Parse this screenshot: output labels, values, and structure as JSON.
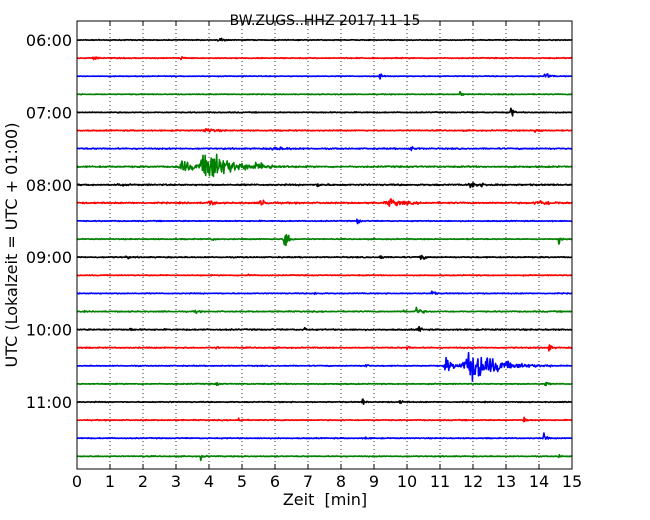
{
  "chart_data": {
    "type": "line",
    "title": "BW.ZUGS..HHZ 2017-11-15",
    "xlabel": "Zeit  [min]",
    "ylabel": "UTC (Lokalzeit = UTC + 01:00)",
    "xlim": [
      0,
      15
    ],
    "x_ticks": [
      "0",
      "1",
      "2",
      "3",
      "4",
      "5",
      "6",
      "7",
      "8",
      "9",
      "10",
      "11",
      "12",
      "13",
      "14",
      "15"
    ],
    "y_ticks": [
      "06:00",
      "07:00",
      "08:00",
      "09:00",
      "10:00",
      "11:00"
    ],
    "y_tick_trace_index": [
      0,
      4,
      8,
      12,
      16,
      20
    ],
    "trace_interval_min": 15,
    "grid": "vertical dotted",
    "color_cycle": [
      "#000000",
      "#ff0000",
      "#0000ff",
      "#008000"
    ],
    "traces": [
      {
        "start": "06:00",
        "color": "#000000",
        "noise": 0.25,
        "events": [
          [
            4.3,
            1.5,
            0.1
          ]
        ]
      },
      {
        "start": "06:15",
        "color": "#ff0000",
        "noise": 0.3,
        "events": [
          [
            0.5,
            1.2,
            0.1
          ],
          [
            3.15,
            2.0,
            0.05
          ]
        ]
      },
      {
        "start": "06:30",
        "color": "#0000ff",
        "noise": 0.25,
        "events": [
          [
            9.15,
            3.0,
            0.05
          ],
          [
            14.2,
            3.5,
            0.08
          ]
        ]
      },
      {
        "start": "06:45",
        "color": "#008000",
        "noise": 0.25,
        "events": [
          [
            11.6,
            2.5,
            0.05
          ]
        ]
      },
      {
        "start": "07:00",
        "color": "#000000",
        "noise": 0.3,
        "events": [
          [
            13.15,
            5.0,
            0.05
          ]
        ]
      },
      {
        "start": "07:15",
        "color": "#ff0000",
        "noise": 0.35,
        "events": [
          [
            3.9,
            1.5,
            0.2
          ],
          [
            13.9,
            1.5,
            0.1
          ]
        ]
      },
      {
        "start": "07:30",
        "color": "#0000ff",
        "noise": 0.4,
        "events": [
          [
            10.1,
            1.5,
            0.1
          ],
          [
            6.0,
            0.8,
            0.4
          ]
        ]
      },
      {
        "start": "07:45",
        "color": "#008000",
        "noise": 0.45,
        "events": [
          [
            4.0,
            12.0,
            0.5
          ],
          [
            3.2,
            4.0,
            0.3
          ],
          [
            5.5,
            1.5,
            0.4
          ]
        ]
      },
      {
        "start": "08:00",
        "color": "#000000",
        "noise": 0.45,
        "events": [
          [
            1.25,
            2.0,
            0.05
          ],
          [
            12.0,
            1.5,
            0.3
          ],
          [
            7.3,
            1.2,
            0.1
          ]
        ]
      },
      {
        "start": "08:15",
        "color": "#ff0000",
        "noise": 0.45,
        "events": [
          [
            9.5,
            2.5,
            0.3
          ],
          [
            4.0,
            2.0,
            0.1
          ],
          [
            5.6,
            1.8,
            0.15
          ],
          [
            14.0,
            1.6,
            0.3
          ]
        ]
      },
      {
        "start": "08:30",
        "color": "#0000ff",
        "noise": 0.3,
        "events": [
          [
            8.5,
            3.0,
            0.05
          ]
        ]
      },
      {
        "start": "08:45",
        "color": "#008000",
        "noise": 0.3,
        "events": [
          [
            6.3,
            9.0,
            0.08
          ],
          [
            4.1,
            1.5,
            0.05
          ],
          [
            14.6,
            3.0,
            0.05
          ]
        ]
      },
      {
        "start": "09:00",
        "color": "#000000",
        "noise": 0.35,
        "events": [
          [
            9.2,
            2.0,
            0.05
          ],
          [
            10.4,
            2.0,
            0.1
          ],
          [
            1.5,
            1.2,
            0.05
          ]
        ]
      },
      {
        "start": "09:15",
        "color": "#ff0000",
        "noise": 0.3,
        "events": [
          [
            5.2,
            2.5,
            0.05
          ]
        ]
      },
      {
        "start": "09:30",
        "color": "#0000ff",
        "noise": 0.3,
        "events": [
          [
            10.75,
            3.0,
            0.05
          ],
          [
            7.2,
            1.2,
            0.05
          ]
        ]
      },
      {
        "start": "09:45",
        "color": "#008000",
        "noise": 0.35,
        "events": [
          [
            10.3,
            3.0,
            0.1
          ],
          [
            3.6,
            1.5,
            0.05
          ],
          [
            9.9,
            1.2,
            0.05
          ]
        ]
      },
      {
        "start": "10:00",
        "color": "#000000",
        "noise": 0.4,
        "events": [
          [
            10.35,
            3.5,
            0.05
          ],
          [
            6.9,
            1.5,
            0.05
          ],
          [
            1.6,
            1.2,
            0.05
          ]
        ]
      },
      {
        "start": "10:15",
        "color": "#ff0000",
        "noise": 0.35,
        "events": [
          [
            14.3,
            3.5,
            0.05
          ],
          [
            10.0,
            1.5,
            0.05
          ],
          [
            4.2,
            1.2,
            0.05
          ]
        ]
      },
      {
        "start": "10:30",
        "color": "#0000ff",
        "noise": 0.3,
        "events": [
          [
            12.0,
            11.0,
            0.6
          ],
          [
            11.2,
            5.0,
            0.15
          ],
          [
            8.75,
            1.5,
            0.05
          ]
        ]
      },
      {
        "start": "10:45",
        "color": "#008000",
        "noise": 0.3,
        "events": [
          [
            4.2,
            2.0,
            0.05
          ],
          [
            14.2,
            1.8,
            0.05
          ]
        ]
      },
      {
        "start": "11:00",
        "color": "#000000",
        "noise": 0.3,
        "events": [
          [
            8.65,
            2.5,
            0.05
          ],
          [
            9.8,
            1.2,
            0.1
          ]
        ]
      },
      {
        "start": "11:15",
        "color": "#ff0000",
        "noise": 0.3,
        "events": [
          [
            4.9,
            2.5,
            0.05
          ],
          [
            13.55,
            2.8,
            0.05
          ]
        ]
      },
      {
        "start": "11:30",
        "color": "#0000ff",
        "noise": 0.3,
        "events": [
          [
            14.15,
            4.0,
            0.05
          ],
          [
            8.75,
            1.5,
            0.05
          ]
        ]
      },
      {
        "start": "11:45",
        "color": "#008000",
        "noise": 0.3,
        "events": [
          [
            3.75,
            2.0,
            0.05
          ],
          [
            14.6,
            1.2,
            0.05
          ]
        ]
      }
    ]
  }
}
